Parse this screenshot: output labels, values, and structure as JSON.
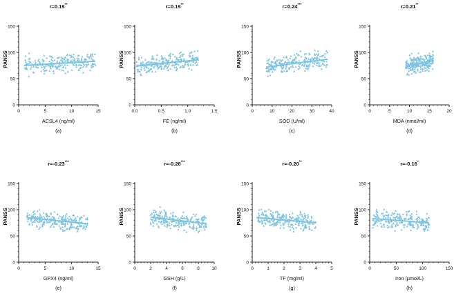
{
  "chart_data": [
    {
      "type": "scatter",
      "panel": "(a)",
      "title": "r=0.19",
      "sig": "**",
      "xlabel": "ACSL4 (ng/ml)",
      "ylabel": "PANSS",
      "xlim": [
        0,
        15
      ],
      "ylim": [
        0,
        150
      ],
      "xticks": [
        0,
        5,
        10,
        15
      ],
      "yticks": [
        0,
        50,
        100,
        150
      ],
      "xfmt": 0,
      "fit": [
        [
          1,
          75
        ],
        [
          14.3,
          83
        ]
      ],
      "cloud": {
        "xmin": 1,
        "xmax": 14.5,
        "slope": 0.6,
        "icpt": 74.4,
        "sd": 10,
        "n": 230,
        "seed": 11
      }
    },
    {
      "type": "scatter",
      "panel": "(b)",
      "title": "r=0.19",
      "sig": "**",
      "xlabel": "FE (ng/ml)",
      "ylabel": "PANSS",
      "xlim": [
        0,
        1.5
      ],
      "ylim": [
        0,
        150
      ],
      "xticks": [
        0,
        0.5,
        1,
        1.5
      ],
      "yticks": [
        0,
        50,
        100,
        150
      ],
      "xfmt": 1,
      "fit": [
        [
          0.03,
          74
        ],
        [
          1.2,
          86
        ]
      ],
      "cloud": {
        "xmin": 0.03,
        "xmax": 1.2,
        "slope": 10.3,
        "icpt": 73.7,
        "sd": 10,
        "n": 230,
        "seed": 23
      }
    },
    {
      "type": "scatter",
      "panel": "(c)",
      "title": "r=0.24",
      "sig": "***",
      "xlabel": "SOD (U/ml)",
      "ylabel": "PANSS",
      "xlim": [
        0,
        40
      ],
      "ylim": [
        0,
        150
      ],
      "xticks": [
        0,
        10,
        20,
        30,
        40
      ],
      "yticks": [
        0,
        50,
        100,
        150
      ],
      "xfmt": 0,
      "fit": [
        [
          7,
          72
        ],
        [
          38,
          87
        ]
      ],
      "cloud": {
        "xmin": 7,
        "xmax": 38,
        "slope": 0.48,
        "icpt": 68.6,
        "sd": 10,
        "n": 230,
        "seed": 37
      }
    },
    {
      "type": "scatter",
      "panel": "(d)",
      "title": "r=0.21",
      "sig": "**",
      "xlabel": "MDA (nmol/ml)",
      "ylabel": "PANSS",
      "xlim": [
        0,
        20
      ],
      "ylim": [
        0,
        150
      ],
      "xticks": [
        0,
        5,
        10,
        15,
        20
      ],
      "yticks": [
        0,
        50,
        100,
        150
      ],
      "xfmt": 0,
      "fit": [
        [
          9,
          74
        ],
        [
          16,
          84
        ]
      ],
      "cloud": {
        "xmin": 9,
        "xmax": 16,
        "slope": 1.43,
        "icpt": 61.1,
        "sd": 10,
        "n": 230,
        "seed": 41
      }
    },
    {
      "type": "scatter",
      "panel": "(e)",
      "title": "r=-0.23",
      "sig": "***",
      "xlabel": "GPX4 (ng/ml)",
      "ylabel": "PANSS",
      "xlim": [
        0,
        15
      ],
      "ylim": [
        0,
        150
      ],
      "xticks": [
        0,
        5,
        10,
        15
      ],
      "yticks": [
        0,
        50,
        100,
        150
      ],
      "xfmt": 0,
      "fit": [
        [
          1.5,
          85
        ],
        [
          13,
          73
        ]
      ],
      "cloud": {
        "xmin": 1.5,
        "xmax": 13,
        "slope": -1.04,
        "icpt": 86.6,
        "sd": 10,
        "n": 230,
        "seed": 53
      }
    },
    {
      "type": "scatter",
      "panel": "(f)",
      "title": "r=-0.28",
      "sig": "***",
      "xlabel": "GSH (g/L)",
      "ylabel": "PANSS",
      "xlim": [
        0,
        10
      ],
      "ylim": [
        0,
        150
      ],
      "xticks": [
        0,
        2,
        4,
        6,
        8,
        10
      ],
      "yticks": [
        0,
        50,
        100,
        150
      ],
      "xfmt": 0,
      "fit": [
        [
          2,
          86
        ],
        [
          9,
          73
        ]
      ],
      "cloud": {
        "xmin": 2,
        "xmax": 9,
        "slope": -1.86,
        "icpt": 89.7,
        "sd": 10,
        "n": 230,
        "seed": 67
      }
    },
    {
      "type": "scatter",
      "panel": "(g)",
      "title": "r=-0.20",
      "sig": "**",
      "xlabel": "TF (mg/ml)",
      "ylabel": "PANSS",
      "xlim": [
        0,
        5
      ],
      "ylim": [
        0,
        150
      ],
      "xticks": [
        0,
        1,
        2,
        3,
        4,
        5
      ],
      "yticks": [
        0,
        50,
        100,
        150
      ],
      "xfmt": 0,
      "fit": [
        [
          0.3,
          85
        ],
        [
          4,
          75
        ]
      ],
      "cloud": {
        "xmin": 0.3,
        "xmax": 4,
        "slope": -2.7,
        "icpt": 85.8,
        "sd": 10,
        "n": 230,
        "seed": 79
      }
    },
    {
      "type": "scatter",
      "panel": "(h)",
      "title": "r=-0.16",
      "sig": "*",
      "xlabel": "Iron (µmol/L)",
      "ylabel": "PANSS",
      "xlim": [
        0,
        150
      ],
      "ylim": [
        0,
        150
      ],
      "xticks": [
        0,
        50,
        100,
        150
      ],
      "yticks": [
        0,
        50,
        100,
        150
      ],
      "xfmt": 0,
      "fit": [
        [
          5,
          83
        ],
        [
          112,
          75
        ]
      ],
      "cloud": {
        "xmin": 5,
        "xmax": 112,
        "slope": -0.075,
        "icpt": 83.4,
        "sd": 10,
        "n": 230,
        "seed": 97
      }
    }
  ],
  "colors": {
    "points": "#7ec3e0",
    "line": "#7ec3e0",
    "axis": "#222222",
    "text": "#111111"
  }
}
